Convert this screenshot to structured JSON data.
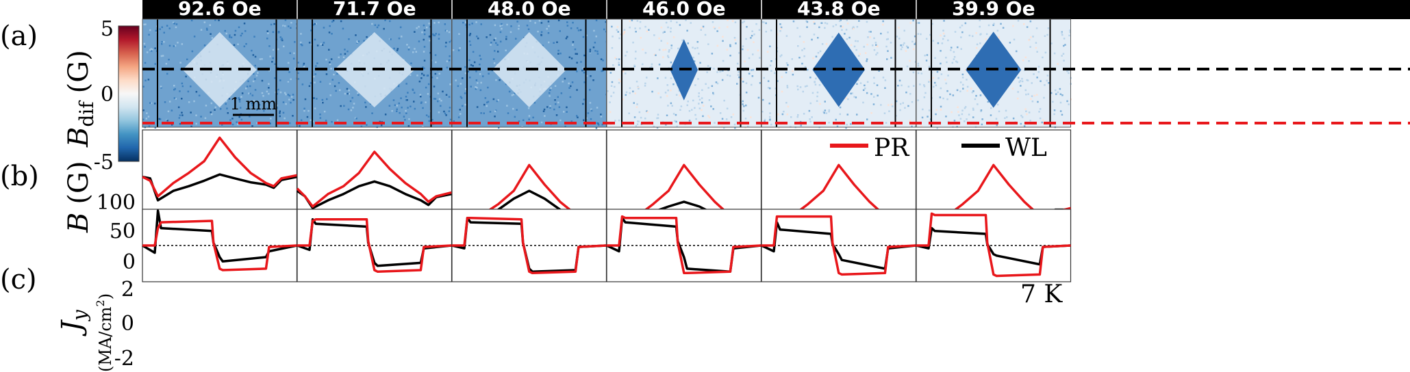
{
  "panel_labels": [
    "(a)",
    "(b)",
    "(c)"
  ],
  "colorbar": {
    "label_main": "B",
    "label_sub": "dif",
    "label_unit": "(G)",
    "ticks": [
      "5",
      "0",
      "-5"
    ],
    "colors": [
      "#67001f",
      "#b2182b",
      "#d6604d",
      "#f4a582",
      "#fddbc7",
      "#f7f7f7",
      "#d1e5f0",
      "#92c5de",
      "#4393c3",
      "#2166ac",
      "#053061"
    ]
  },
  "scale_bar_label": "1 mm",
  "temperature_label": "7 K",
  "colors": {
    "pr": "#e8171b",
    "wl": "#000000",
    "image_blue": "#2f75b8",
    "guide_black": "#000000",
    "guide_red": "#e8171b"
  },
  "chart_data": [
    {
      "type": "line",
      "panel": "(b)",
      "ylabel_main": "B",
      "ylabel_unit": "(G)",
      "yticks": [
        "100",
        "50",
        "0"
      ],
      "ylim": [
        0,
        140
      ],
      "legend": {
        "placement": "top",
        "entries": [
          {
            "key": "PR",
            "name": "PR"
          },
          {
            "key": "WL",
            "name": "WL"
          }
        ]
      },
      "subplots": [
        {
          "field": "92.6 Oe",
          "x": [
            0,
            0.05,
            0.1,
            0.2,
            0.3,
            0.4,
            0.5,
            0.6,
            0.7,
            0.8,
            0.85,
            0.9,
            1.0
          ],
          "series": [
            {
              "name": "PR",
              "values": [
                80,
                75,
                55,
                72,
                85,
                100,
                130,
                105,
                85,
                72,
                68,
                78,
                82
              ]
            },
            {
              "name": "WL",
              "values": [
                80,
                78,
                50,
                62,
                68,
                75,
                83,
                78,
                73,
                70,
                66,
                76,
                80
              ]
            }
          ]
        },
        {
          "field": "71.7 Oe",
          "x": [
            0,
            0.05,
            0.1,
            0.2,
            0.3,
            0.4,
            0.5,
            0.6,
            0.7,
            0.8,
            0.85,
            0.9,
            1.0
          ],
          "series": [
            {
              "name": "PR",
              "values": [
                65,
                55,
                42,
                58,
                68,
                85,
                112,
                90,
                72,
                58,
                48,
                55,
                60
              ]
            },
            {
              "name": "WL",
              "values": [
                62,
                55,
                40,
                50,
                58,
                68,
                74,
                68,
                58,
                50,
                44,
                54,
                58
              ]
            }
          ]
        },
        {
          "field": "48.0 Oe",
          "x": [
            0,
            0.05,
            0.1,
            0.2,
            0.3,
            0.4,
            0.5,
            0.6,
            0.7,
            0.8,
            0.85,
            0.9,
            1.0
          ],
          "series": [
            {
              "name": "PR",
              "values": [
                30,
                28,
                12,
                32,
                45,
                62,
                95,
                70,
                48,
                32,
                16,
                32,
                32
              ]
            },
            {
              "name": "WL",
              "values": [
                30,
                25,
                10,
                28,
                38,
                52,
                62,
                52,
                38,
                24,
                14,
                28,
                30
              ]
            }
          ]
        },
        {
          "field": "46.0 Oe",
          "x": [
            0,
            0.05,
            0.1,
            0.2,
            0.3,
            0.4,
            0.5,
            0.6,
            0.7,
            0.8,
            0.85,
            0.9,
            1.0
          ],
          "series": [
            {
              "name": "PR",
              "values": [
                30,
                25,
                10,
                30,
                45,
                62,
                95,
                70,
                48,
                30,
                12,
                30,
                32
              ]
            },
            {
              "name": "WL",
              "values": [
                30,
                24,
                8,
                28,
                35,
                42,
                48,
                42,
                32,
                22,
                12,
                28,
                30
              ]
            }
          ]
        },
        {
          "field": "43.8 Oe",
          "x": [
            0,
            0.05,
            0.1,
            0.2,
            0.3,
            0.4,
            0.5,
            0.6,
            0.7,
            0.8,
            0.85,
            0.9,
            1.0
          ],
          "series": [
            {
              "name": "PR",
              "values": [
                30,
                25,
                10,
                30,
                45,
                62,
                95,
                70,
                48,
                30,
                14,
                30,
                32
              ]
            },
            {
              "name": "WL",
              "values": [
                30,
                22,
                8,
                16,
                22,
                25,
                28,
                28,
                32,
                35,
                16,
                28,
                30
              ]
            }
          ]
        },
        {
          "field": "39.9 Oe",
          "x": [
            0,
            0.05,
            0.1,
            0.2,
            0.3,
            0.4,
            0.5,
            0.6,
            0.7,
            0.8,
            0.85,
            0.9,
            1.0
          ],
          "series": [
            {
              "name": "PR",
              "values": [
                30,
                25,
                8,
                30,
                45,
                62,
                95,
                70,
                48,
                30,
                10,
                35,
                40
              ]
            },
            {
              "name": "WL",
              "values": [
                28,
                18,
                5,
                12,
                10,
                6,
                4,
                6,
                12,
                22,
                26,
                38,
                38
              ]
            }
          ]
        }
      ]
    },
    {
      "type": "line",
      "panel": "(c)",
      "ylabel_main": "J",
      "ylabel_sub": "y",
      "ylabel_unit": "(MA/cm",
      "ylabel_unit_sup": "2",
      "ylabel_unit_close": ")",
      "yticks": [
        "2",
        "0",
        "-2"
      ],
      "ylim": [
        -2.5,
        2.5
      ],
      "subplots": [
        {
          "field": "92.6 Oe",
          "x": [
            0,
            0.08,
            0.1,
            0.12,
            0.45,
            0.46,
            0.5,
            0.52,
            0.8,
            0.82,
            1.0
          ],
          "series": [
            {
              "name": "PR",
              "values": [
                0,
                0,
                1.2,
                1.6,
                1.7,
                0.2,
                -1.6,
                -1.7,
                -1.6,
                -0.1,
                0
              ]
            },
            {
              "name": "WL",
              "values": [
                0,
                -0.5,
                2.4,
                1.2,
                1.0,
                0.2,
                -0.8,
                -1.1,
                -0.8,
                -0.4,
                0
              ]
            }
          ]
        },
        {
          "field": "71.7 Oe",
          "x": [
            0,
            0.08,
            0.1,
            0.12,
            0.45,
            0.46,
            0.5,
            0.52,
            0.8,
            0.82,
            1.0
          ],
          "series": [
            {
              "name": "PR",
              "values": [
                0,
                0,
                1.7,
                1.8,
                1.8,
                0.3,
                -1.7,
                -1.8,
                -1.7,
                -0.1,
                0
              ]
            },
            {
              "name": "WL",
              "values": [
                0,
                -0.3,
                1.8,
                1.5,
                1.3,
                0.2,
                -1.2,
                -1.4,
                -1.2,
                -0.2,
                0
              ]
            }
          ]
        },
        {
          "field": "48.0 Oe",
          "x": [
            0,
            0.08,
            0.1,
            0.12,
            0.45,
            0.46,
            0.5,
            0.52,
            0.8,
            0.82,
            1.0
          ],
          "series": [
            {
              "name": "PR",
              "values": [
                0,
                0,
                1.9,
                1.9,
                1.8,
                0.2,
                -1.8,
                -1.9,
                -1.8,
                -0.1,
                0
              ]
            },
            {
              "name": "WL",
              "values": [
                0,
                -0.2,
                1.9,
                1.6,
                1.5,
                0.2,
                -1.6,
                -1.8,
                -1.7,
                -0.1,
                0
              ]
            }
          ]
        },
        {
          "field": "46.0 Oe",
          "x": [
            0,
            0.08,
            0.1,
            0.12,
            0.45,
            0.46,
            0.5,
            0.52,
            0.8,
            0.82,
            1.0
          ],
          "series": [
            {
              "name": "PR",
              "values": [
                0,
                0,
                2.0,
                1.9,
                1.9,
                0.2,
                -1.9,
                -1.9,
                -1.8,
                -0.1,
                0
              ]
            },
            {
              "name": "WL",
              "values": [
                0,
                -0.4,
                1.9,
                1.6,
                1.3,
                0.3,
                -0.8,
                -1.6,
                -1.8,
                -0.2,
                0
              ]
            }
          ]
        },
        {
          "field": "43.8 Oe",
          "x": [
            0,
            0.08,
            0.1,
            0.12,
            0.45,
            0.46,
            0.5,
            0.52,
            0.8,
            0.82,
            1.0
          ],
          "series": [
            {
              "name": "PR",
              "values": [
                0,
                0,
                2.0,
                2.0,
                2.0,
                0.2,
                -1.9,
                -2.0,
                -1.9,
                -0.1,
                0
              ]
            },
            {
              "name": "WL",
              "values": [
                0,
                -0.4,
                1.6,
                1.1,
                0.8,
                0.1,
                -0.6,
                -1.0,
                -1.6,
                -0.2,
                0
              ]
            }
          ]
        },
        {
          "field": "39.9 Oe",
          "x": [
            0,
            0.08,
            0.1,
            0.12,
            0.45,
            0.46,
            0.5,
            0.52,
            0.8,
            0.82,
            1.0
          ],
          "series": [
            {
              "name": "PR",
              "values": [
                0,
                0,
                2.2,
                2.1,
                2.1,
                0.2,
                -2.0,
                -2.1,
                -2.0,
                -0.1,
                0
              ]
            },
            {
              "name": "WL",
              "values": [
                0,
                -0.2,
                1.2,
                1.0,
                0.8,
                0.1,
                -0.6,
                -0.7,
                -1.3,
                -0.1,
                0
              ]
            }
          ]
        }
      ]
    }
  ],
  "image_panels": {
    "fields": [
      "92.6 Oe",
      "71.7 Oe",
      "48.0 Oe",
      "46.0 Oe",
      "43.8 Oe",
      "39.9 Oe"
    ],
    "core_intensity": [
      0.15,
      0.1,
      0.15,
      0.9,
      1.0,
      0.9
    ],
    "core_width": [
      0.48,
      0.52,
      0.48,
      0.18,
      0.34,
      0.36
    ],
    "background_level": [
      0.4,
      0.5,
      0.45,
      0.1,
      0.12,
      0.15
    ]
  }
}
